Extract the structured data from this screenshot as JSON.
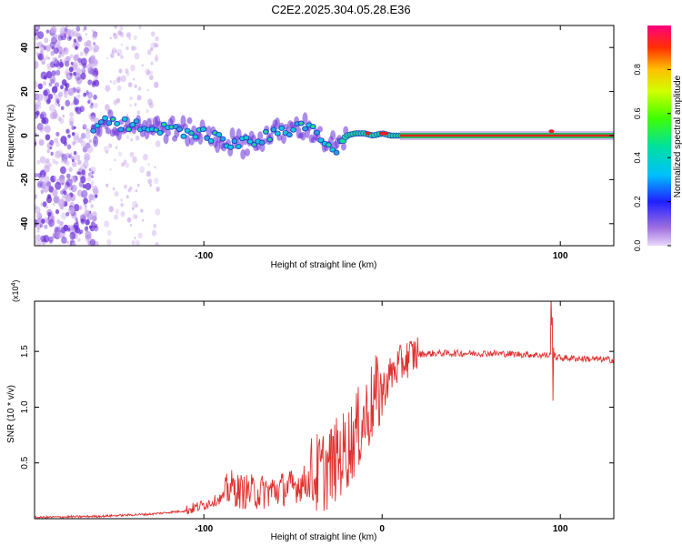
{
  "title": "C2E2.2025.304.05.28.E36",
  "chart_data": [
    {
      "type": "heatmap",
      "xlabel": "Height of straight line (km)",
      "ylabel": "Frequency (Hz)",
      "xlim": [
        -195,
        130
      ],
      "ylim": [
        -50,
        50
      ],
      "xticks": [
        -100,
        100
      ],
      "yticks": [
        -40,
        -20,
        0,
        20,
        40
      ],
      "colorbar": {
        "label": "Normalized spectral amplitude",
        "range": [
          0,
          1
        ],
        "ticks": [
          0.0,
          0.2,
          0.4,
          0.6,
          0.8
        ]
      },
      "ridge": {
        "x": [
          -160,
          -150,
          -140,
          -130,
          -120,
          -110,
          -100,
          -90,
          -80,
          -70,
          -60,
          -50,
          -45,
          -40,
          -35,
          -30,
          -25,
          -20,
          -15,
          -10,
          -5,
          0,
          5,
          10,
          20,
          40,
          60,
          80,
          100,
          130
        ],
        "freq": [
          6,
          5,
          5,
          4,
          3,
          2,
          1,
          -2,
          -4,
          -2,
          1,
          3,
          4,
          3,
          -1,
          -3,
          -6,
          0,
          1,
          1,
          0,
          1,
          0,
          0,
          0,
          0,
          0,
          0,
          0,
          0
        ]
      },
      "colors": {
        "low": "#c9a8ec",
        "mid": "#2aa0e0",
        "high": "#e02020"
      }
    },
    {
      "type": "line",
      "xlabel": "Height of straight line (km)",
      "ylabel": "SNR (10 * v/v)",
      "yscale_label": "(x10",
      "yscale_exp": "4",
      "xlim": [
        -195,
        130
      ],
      "ylim": [
        0,
        1.95
      ],
      "xticks": [
        -100,
        0,
        100
      ],
      "yticks": [
        0.5,
        1.0,
        1.5
      ],
      "ytick_labels": [
        "0.5",
        "1.0",
        "1.5"
      ],
      "series": [
        {
          "name": "SNR",
          "color": "#e03030",
          "x": [
            -195,
            -160,
            -130,
            -110,
            -100,
            -90,
            -85,
            -80,
            -70,
            -60,
            -50,
            -40,
            -30,
            -25,
            -20,
            -15,
            -10,
            -5,
            0,
            5,
            10,
            15,
            20,
            30,
            40,
            60,
            80,
            95,
            100,
            130
          ],
          "y": [
            0.01,
            0.02,
            0.04,
            0.07,
            0.12,
            0.18,
            0.27,
            0.23,
            0.22,
            0.24,
            0.27,
            0.33,
            0.42,
            0.5,
            0.58,
            0.72,
            0.85,
            1.02,
            1.12,
            1.28,
            1.36,
            1.43,
            1.47,
            1.48,
            1.48,
            1.48,
            1.47,
            1.46,
            1.44,
            1.42
          ]
        }
      ]
    }
  ]
}
